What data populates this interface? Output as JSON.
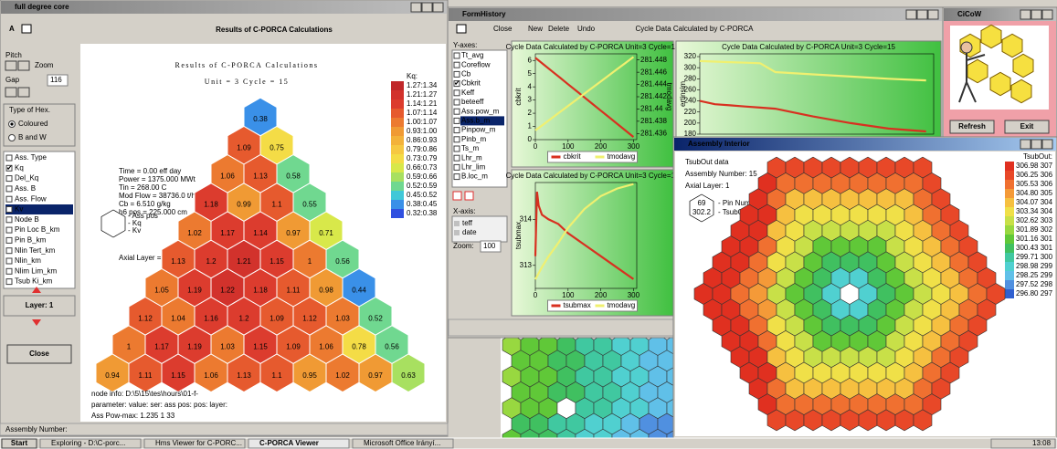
{
  "taskbar": {
    "start": "Start",
    "items": [
      "Exploring - D:\\C-porc...",
      "Hms Viewer for C-PORC...",
      "C-PORCA Viewer",
      "Microsoft Office Irányí..."
    ],
    "clock": "13:08"
  },
  "core_window": {
    "title": "full degree core",
    "toolbar_letter": "A",
    "heading": "Results of C-PORCA Calculations",
    "pitch": "Pitch",
    "zoom": "Zoom",
    "gap": "Gap",
    "gap_value": "116",
    "hex_type": {
      "title": "Type of Hex.",
      "options": [
        "Coloured",
        "B and W"
      ]
    },
    "params": [
      "Ass. Type",
      "Kq",
      "Del_Kq",
      "Ass. B",
      "Ass. Flow",
      "Kv",
      "Node B",
      "Pin Loc B_km",
      "Pin B_km",
      "Nlin Tert_km",
      "Nlin_km",
      "Nlim Lim_km",
      "Tsub Ki_km"
    ],
    "checked_param": 1,
    "selected_param": 5,
    "layer": "Layer: 1",
    "close": "Close",
    "status": "Assembly Number:",
    "report": {
      "title": "Results of C-PORCA Calculations",
      "subtitle": "Unit = 3 Cycle = 15",
      "info": [
        "Time = 0.00 eff day",
        "Power = 1375.000 MWt",
        "Tin = 268.00 C",
        "Mod Flow = 38736.0 t/h",
        "Cb = 6.510 g/kg",
        "h6 pos = 225.000 cm"
      ],
      "hex_key": [
        "- Ass pos",
        "- Kq",
        "- Kv"
      ],
      "axial": "Axial Layer = 1",
      "legend_title": "Kq:",
      "legend": [
        {
          "value": 1.27,
          "label": "1.27:1.34",
          "color": "#c0282a"
        },
        {
          "value": 1.21,
          "label": "1.21:1.27",
          "color": "#d2322c"
        },
        {
          "value": 1.14,
          "label": "1.14:1.21",
          "color": "#dc3c2e"
        },
        {
          "value": 1.07,
          "label": "1.07:1.14",
          "color": "#e65a2e"
        },
        {
          "value": 1.0,
          "label": "1.00:1.07",
          "color": "#ec7a30"
        },
        {
          "value": 0.93,
          "label": "0.93:1.00",
          "color": "#f09a34"
        },
        {
          "value": 0.86,
          "label": "0.86:0.93",
          "color": "#f3b23a"
        },
        {
          "value": 0.79,
          "label": "0.79:0.86",
          "color": "#f6c842"
        },
        {
          "value": 0.73,
          "label": "0.73:0.79",
          "color": "#f4dc46"
        },
        {
          "value": 0.66,
          "label": "0.66:0.73",
          "color": "#d8e84a"
        },
        {
          "value": 0.59,
          "label": "0.59:0.66",
          "color": "#a8e060"
        },
        {
          "value": 0.52,
          "label": "0.52:0.59",
          "color": "#70d890"
        },
        {
          "value": 0.45,
          "label": "0.45:0.52",
          "color": "#40c8d8"
        },
        {
          "value": 0.38,
          "label": "0.38:0.45",
          "color": "#3a90e8"
        },
        {
          "value": 0.32,
          "label": "0.32:0.38",
          "color": "#3050e0"
        }
      ],
      "kq": [
        [
          0.38
        ],
        [
          1.09,
          0.75
        ],
        [
          1.06,
          1.13,
          0.58
        ],
        [
          1.18,
          0.99,
          1.1,
          0.55
        ],
        [
          1.02,
          1.17,
          1.14,
          0.97,
          0.71
        ],
        [
          1.13,
          1.2,
          1.21,
          1.15,
          1.0,
          0.56
        ],
        [
          1.05,
          1.19,
          1.22,
          1.18,
          1.11,
          0.98,
          0.44
        ],
        [
          1.12,
          1.04,
          1.16,
          1.2,
          1.09,
          1.12,
          1.03,
          0.52
        ],
        [
          1.0,
          1.17,
          1.19,
          1.03,
          1.15,
          1.09,
          1.06,
          0.78,
          0.56
        ],
        [
          0.94,
          1.11,
          1.15,
          1.06,
          1.13,
          1.1,
          0.95,
          1.02,
          0.97,
          0.63
        ]
      ],
      "footer": [
        "node info: D:\\5\\15\\tes\\hours\\01-f-",
        "parameter:    value:   ser:   ass pos:   pos:   layer:",
        "Ass Pow-max:   1.235     1        33"
      ]
    }
  },
  "history": {
    "title": "FormHistory",
    "menu": [
      "Close",
      "New",
      "Delete",
      "Undo"
    ],
    "heading": "Cycle Data Calculated by C-PORCA",
    "yaxes_label": "Y-axes:",
    "yaxes": [
      "Tt_avg",
      "Coreflow",
      "Cb",
      "Cbkrit",
      "Keff",
      "beteeff",
      "Ass.pow_m",
      "Ass.b_m",
      "Pinpow_m",
      "Pinb_m",
      "Ts_m",
      "Lhr_m",
      "Lhr_lim",
      "B.loc_m"
    ],
    "checked": 3,
    "selected": 7,
    "xaxis_label": "X-axis:",
    "xaxis": [
      "teff",
      "date"
    ],
    "zoom_label": "Zoom:",
    "zoom": "100",
    "charts": [
      {
        "type": "line",
        "title": "Cycle Data Calculated by C-PORCA Unit=3 Cycle=15",
        "ylabel": "cbkrit",
        "y2label": "tmodavg",
        "x": [
          0,
          25,
          50,
          75,
          100,
          125,
          150,
          175,
          200,
          225,
          250,
          275,
          300
        ],
        "xlim": [
          0,
          310
        ],
        "xticks": [
          0,
          100,
          200,
          300
        ],
        "ylim": [
          0,
          6.5
        ],
        "yticks": [
          0,
          1,
          2,
          3,
          4,
          5,
          6
        ],
        "y2lim": [
          281.435,
          281.449
        ],
        "y2ticks": [
          281.436,
          281.438,
          281.44,
          281.442,
          281.444,
          281.446,
          281.448
        ],
        "series": [
          {
            "name": "cbkrit",
            "color": "#d83020",
            "values": [
              6.2,
              5.7,
              5.2,
              4.7,
              4.2,
              3.7,
              3.2,
              2.7,
              2.2,
              1.7,
              1.2,
              0.7,
              0.2
            ]
          },
          {
            "name": "tmodavg",
            "color": "#f0f070",
            "axis": "y2",
            "values": [
              281.4365,
              281.4375,
              281.4385,
              281.4395,
              281.4405,
              281.4415,
              281.4425,
              281.4435,
              281.4445,
              281.4455,
              281.4465,
              281.4475,
              281.4485
            ]
          }
        ]
      },
      {
        "type": "line",
        "title": "Cycle Data Calculated by C-PORCA Unit=3 Cycle=15",
        "ylabel": "tsubmax",
        "x": [
          0,
          5,
          10,
          20,
          40,
          70,
          100,
          150,
          200,
          250,
          300
        ],
        "xlim": [
          0,
          310
        ],
        "xticks": [
          0,
          100,
          200,
          300
        ],
        "ylim": [
          312.5,
          314.8
        ],
        "yticks": [
          313,
          314
        ],
        "y2lim": [
          281.435,
          281.449
        ],
        "series": [
          {
            "name": "tsubmax",
            "color": "#d83020",
            "values": [
              313.2,
              314.6,
              314.3,
              314.1,
              314.0,
              313.9,
              313.7,
              313.45,
              313.2,
              312.95,
              312.7
            ]
          },
          {
            "name": "tmodavg",
            "color": "#f0f070",
            "axis": "y2",
            "values": [
              281.4362,
              281.4366,
              281.437,
              281.4378,
              281.4392,
              281.441,
              281.443,
              281.4455,
              281.4472,
              281.4482,
              281.4488
            ]
          }
        ]
      },
      {
        "type": "line",
        "title": "Cycle Data Calculated by C-PORCA Unit=3 Cycle=15",
        "ylabel": "ertinsim",
        "x": [
          0,
          20,
          40,
          60,
          80,
          100,
          150,
          200,
          250,
          300
        ],
        "xlim": [
          0,
          310
        ],
        "ylim": [
          180,
          325
        ],
        "yticks": [
          180,
          200,
          220,
          240,
          260,
          280,
          300,
          320
        ],
        "series": [
          {
            "color": "#f0f070",
            "values": [
              312,
              311,
              310,
              309,
              308,
              292,
              288,
              284,
              280,
              277
            ]
          },
          {
            "color": "#d83020",
            "values": [
              240,
              234,
              232,
              230,
              228,
              226,
              212,
              200,
              190,
              185
            ]
          }
        ]
      }
    ]
  },
  "cicow": {
    "title": "CiCoW",
    "buttons": [
      "Refresh",
      "Exit"
    ]
  },
  "assembly": {
    "title": "Assembly Interior",
    "info": [
      "TsubOut data",
      "Assembly Number: 15",
      "Axial Layer: 1"
    ],
    "key_hex": [
      "69",
      "302.2"
    ],
    "key": [
      "- Pin Number",
      "- TsubOut"
    ],
    "legend_title": "TsubOut:",
    "legend": [
      {
        "label": "306.98 307",
        "color": "#e03020"
      },
      {
        "label": "306.25 306",
        "color": "#e84828"
      },
      {
        "label": "305.53 306",
        "color": "#f07030"
      },
      {
        "label": "304.80 305",
        "color": "#f49a38"
      },
      {
        "label": "304.07 304",
        "color": "#f6c040"
      },
      {
        "label": "303.34 304",
        "color": "#f0e048"
      },
      {
        "label": "302.62 303",
        "color": "#c8e048"
      },
      {
        "label": "301.89 302",
        "color": "#98d840"
      },
      {
        "label": "301.16 301",
        "color": "#60c838"
      },
      {
        "label": "300.43 301",
        "color": "#40c060"
      },
      {
        "label": "299.71 300",
        "color": "#40c8a0"
      },
      {
        "label": "298.98 299",
        "color": "#50d0d0"
      },
      {
        "label": "298.25 299",
        "color": "#60c0e8"
      },
      {
        "label": "297.52 298",
        "color": "#5090e0"
      },
      {
        "label": "296.80 297",
        "color": "#3060d0"
      }
    ]
  }
}
